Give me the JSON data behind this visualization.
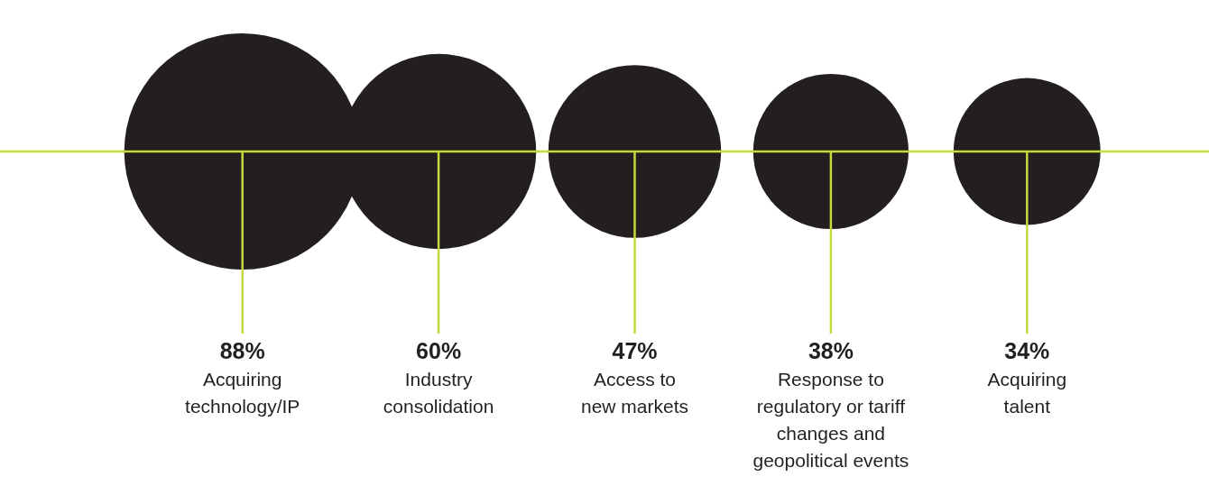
{
  "chart_data": {
    "type": "other",
    "categories": [
      "Acquiring technology/IP",
      "Industry consolidation",
      "Access to new markets",
      "Response to regulatory or tariff changes and geopolitical events",
      "Acquiring talent"
    ],
    "values": [
      88,
      60,
      47,
      38,
      34
    ],
    "value_labels": [
      "88%",
      "60%",
      "47%",
      "38%",
      "34%"
    ],
    "color": "#231f20"
  }
}
